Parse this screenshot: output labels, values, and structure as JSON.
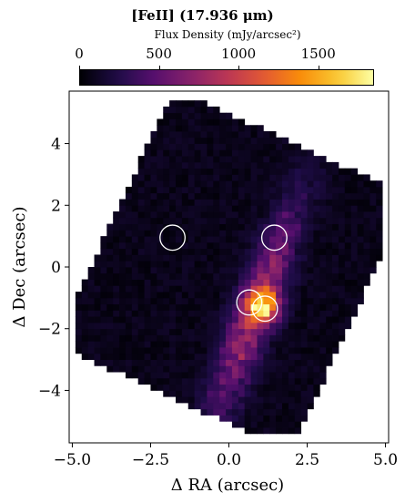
{
  "chart_data": {
    "type": "heatmap",
    "title": "[FeII] (17.936 μm)",
    "colorbar": {
      "label": "Flux Density (mJy/arcsec²)",
      "ticks": [
        "0",
        "500",
        "1000",
        "1500"
      ],
      "tick_values": [
        0,
        500,
        1000,
        1500
      ],
      "range": [
        0,
        1850
      ],
      "colormap": "inferno"
    },
    "xlabel": "Δ RA (arcsec)",
    "ylabel": "Δ Dec (arcsec)",
    "xlim": [
      -5.1,
      5.1
    ],
    "ylim": [
      -5.7,
      5.7
    ],
    "xticks": [
      "−5.0",
      "−2.5",
      "0.0",
      "2.5",
      "5.0"
    ],
    "xtick_values": [
      -5.0,
      -2.5,
      0.0,
      2.5,
      5.0
    ],
    "yticks": [
      "4",
      "2",
      "0",
      "−2",
      "−4"
    ],
    "ytick_values": [
      4,
      2,
      0,
      -2,
      -4
    ],
    "markers": [
      {
        "x": -1.8,
        "y": 0.95
      },
      {
        "x": 1.45,
        "y": 0.95
      },
      {
        "x": 0.65,
        "y": -1.15
      },
      {
        "x": 1.15,
        "y": -1.35
      }
    ]
  }
}
